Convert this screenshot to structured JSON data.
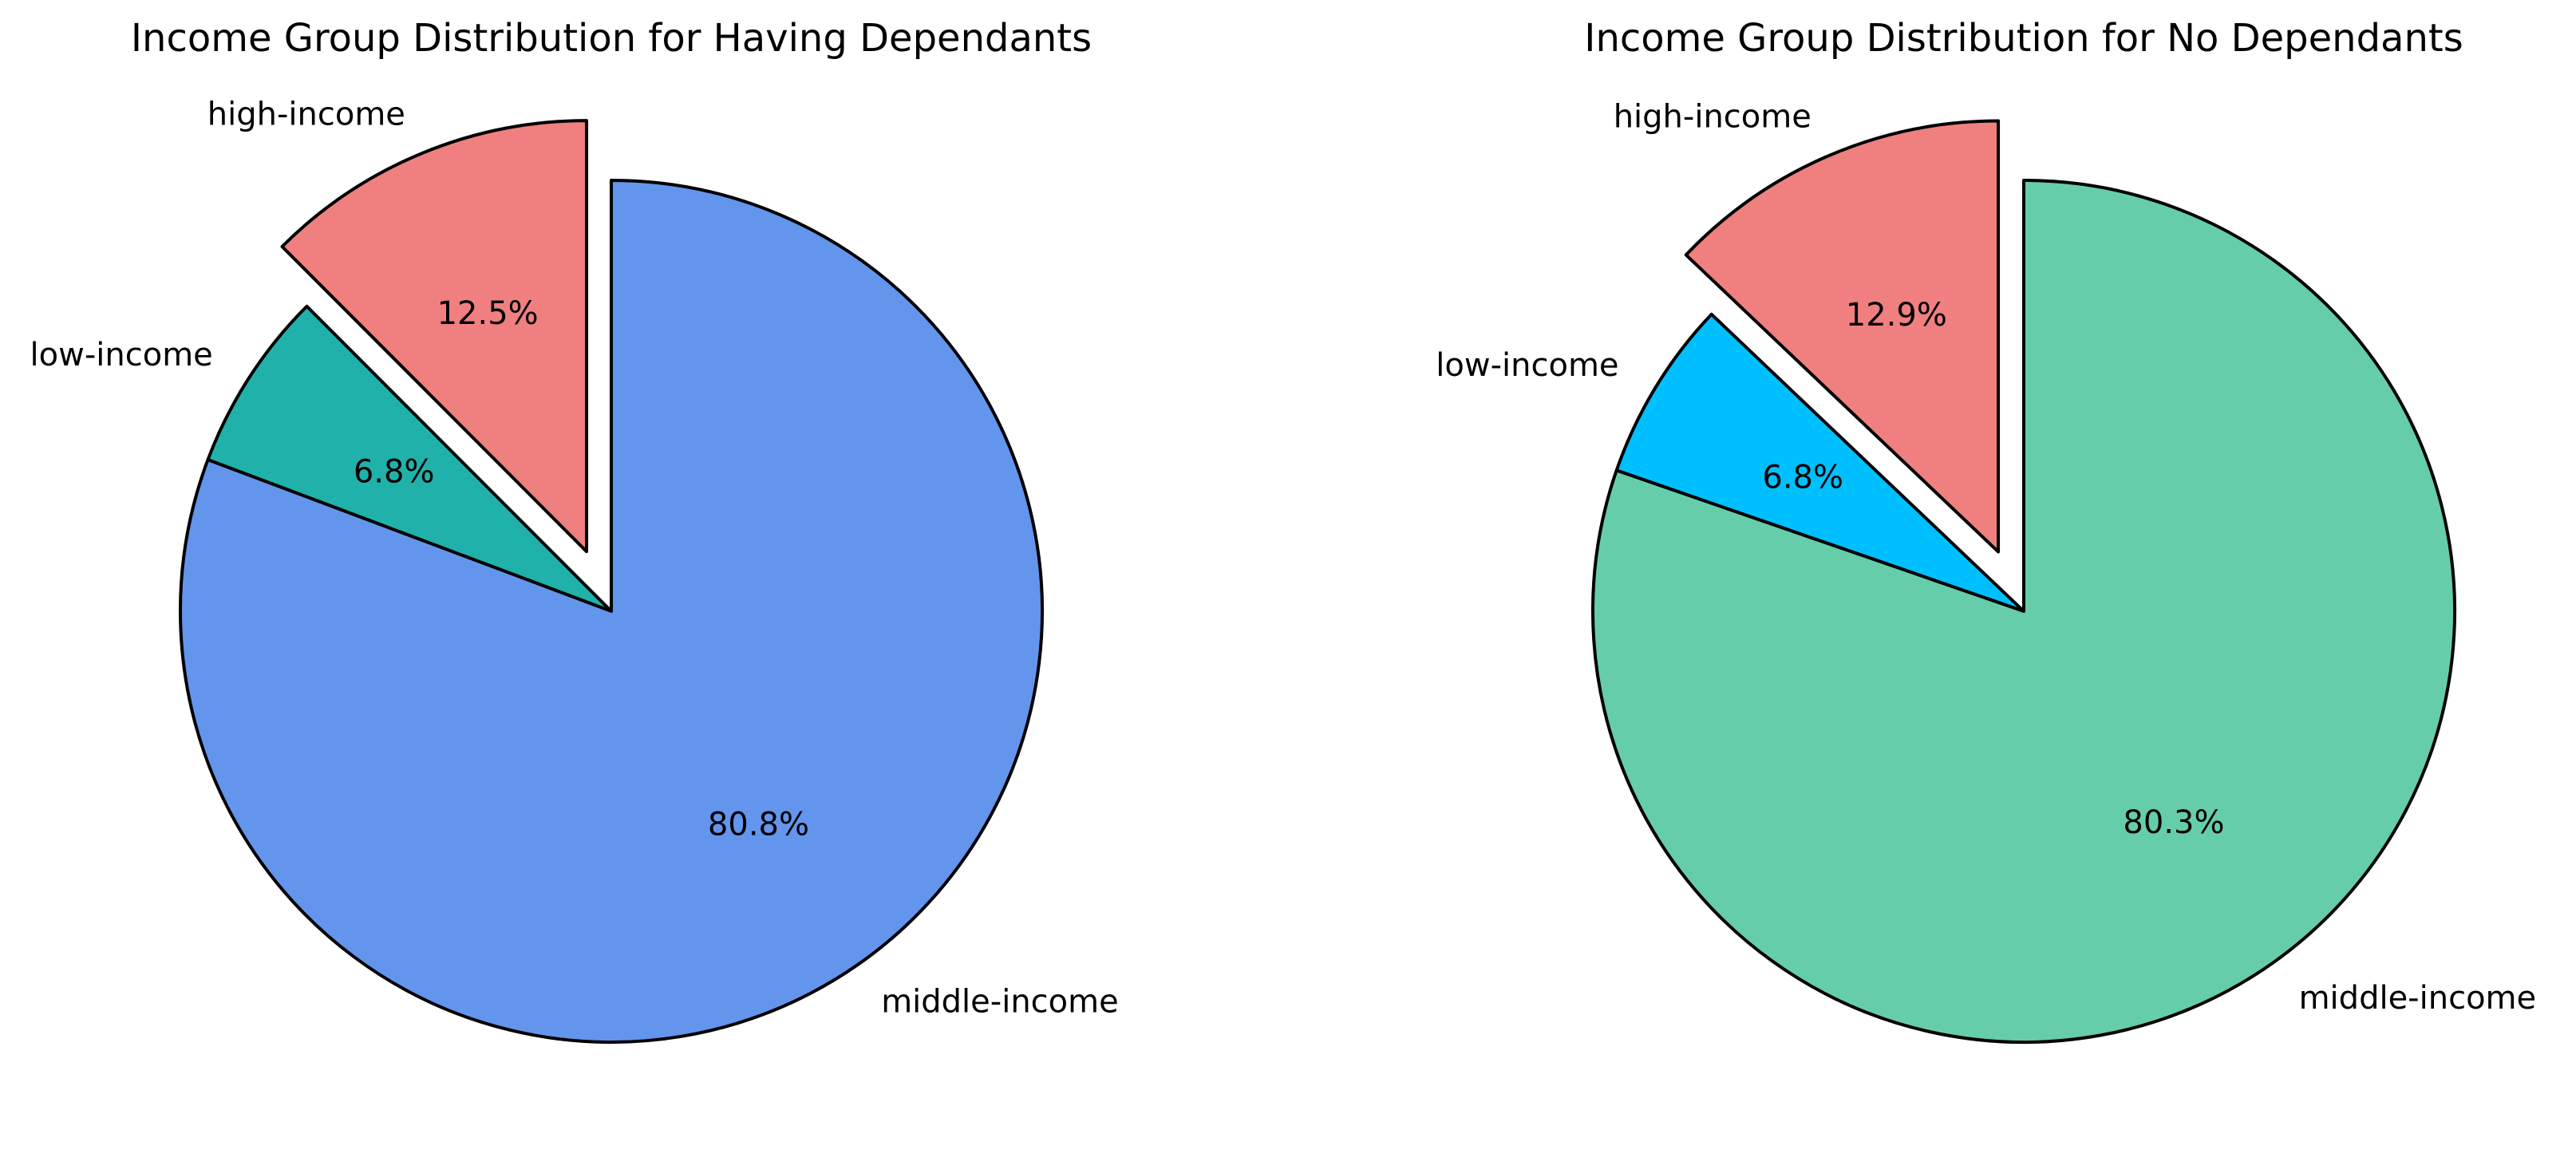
{
  "chart_data": [
    {
      "type": "pie",
      "title": "Income Group Distribution for Having Dependants",
      "slices": [
        {
          "label": "high-income",
          "value": 12.5,
          "pct_label": "12.5%",
          "color": "#F08080",
          "explode": 0.15
        },
        {
          "label": "low-income",
          "value": 6.8,
          "pct_label": "6.8%",
          "color": "#20B2AA",
          "explode": 0
        },
        {
          "label": "middle-income",
          "value": 80.8,
          "pct_label": "80.8%",
          "color": "#6495ED",
          "explode": 0
        }
      ],
      "start_angle": 90,
      "direction": "counterclockwise",
      "edge_color": "#000000"
    },
    {
      "type": "pie",
      "title": "Income Group Distribution for No Dependants",
      "slices": [
        {
          "label": "high-income",
          "value": 12.9,
          "pct_label": "12.9%",
          "color": "#F08080",
          "explode": 0.15
        },
        {
          "label": "low-income",
          "value": 6.8,
          "pct_label": "6.8%",
          "color": "#00BFFF",
          "explode": 0
        },
        {
          "label": "middle-income",
          "value": 80.3,
          "pct_label": "80.3%",
          "color": "#66CDAA",
          "explode": 0
        }
      ],
      "start_angle": 90,
      "direction": "counterclockwise",
      "edge_color": "#000000"
    }
  ]
}
